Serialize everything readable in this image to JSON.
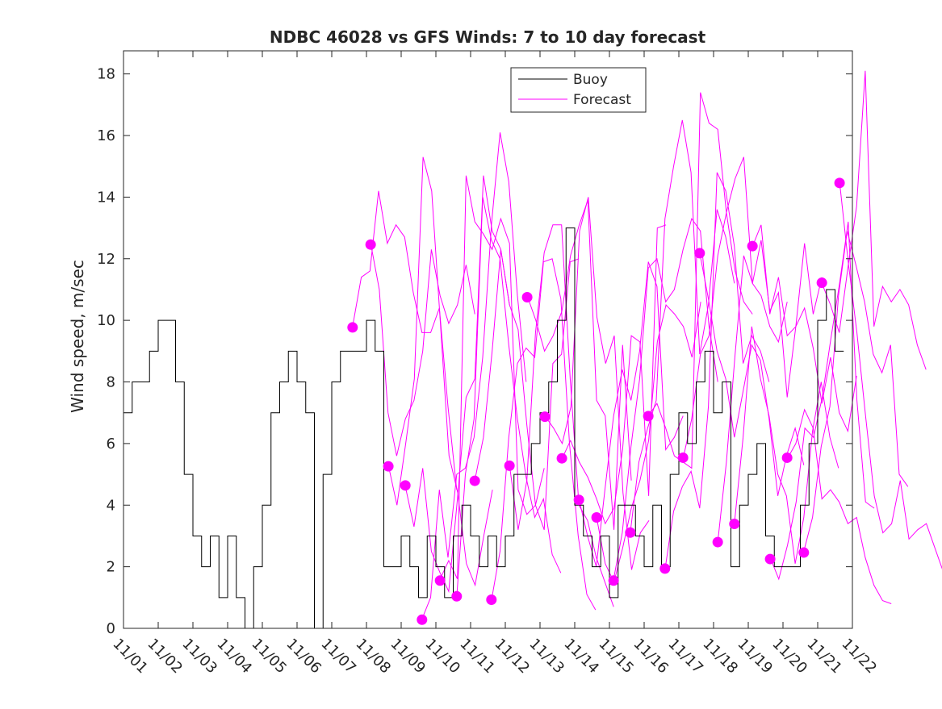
{
  "chart_data": {
    "type": "line",
    "title": "NDBC 46028 vs GFS Winds: 7 to 10 day forecast",
    "xlabel": "",
    "ylabel": "Wind speed, m/sec",
    "xlim": [
      0,
      21
    ],
    "ylim": [
      0,
      18.75
    ],
    "yticks": [
      0,
      2,
      4,
      6,
      8,
      10,
      12,
      14,
      16,
      18
    ],
    "xtick_labels": [
      "11/01",
      "11/02",
      "11/03",
      "11/04",
      "11/05",
      "11/06",
      "11/07",
      "11/08",
      "11/09",
      "11/10",
      "11/11",
      "11/12",
      "11/13",
      "11/14",
      "11/15",
      "11/16",
      "11/17",
      "11/18",
      "11/19",
      "11/20",
      "11/21",
      "11/22"
    ],
    "legend": {
      "placement": "top-center",
      "entries": [
        "Buoy",
        "Forecast"
      ]
    },
    "colors": {
      "buoy": "#000000",
      "forecast": "#ff00ff"
    },
    "buoy": {
      "step_days": 0.25,
      "start_day": 0,
      "values": [
        7,
        8,
        8,
        9,
        10,
        10,
        8,
        5,
        3,
        2,
        3,
        1,
        3,
        1,
        0,
        2,
        4,
        7,
        8,
        9,
        8,
        7,
        0,
        5,
        8,
        9,
        9,
        9,
        10,
        9,
        2,
        2,
        3,
        2,
        1,
        3,
        2,
        1,
        3,
        4,
        3,
        2,
        3,
        2,
        3,
        5,
        5,
        6,
        7,
        8,
        10,
        13,
        4,
        3,
        2,
        3,
        1,
        4,
        4,
        3,
        2,
        4,
        2,
        5,
        7,
        6,
        8,
        9,
        7,
        8,
        2,
        4,
        5,
        6,
        3,
        2,
        2,
        2,
        4,
        6,
        10,
        11,
        9
      ]
    },
    "forecast_points": [
      [
        6.6,
        9.77
      ],
      [
        7.12,
        12.46
      ],
      [
        7.63,
        5.26
      ],
      [
        8.12,
        4.64
      ],
      [
        8.6,
        0.28
      ],
      [
        9.12,
        1.55
      ],
      [
        9.6,
        1.04
      ],
      [
        10.12,
        4.79
      ],
      [
        10.6,
        0.93
      ],
      [
        11.12,
        5.28
      ],
      [
        11.63,
        10.75
      ],
      [
        12.14,
        6.87
      ],
      [
        12.63,
        5.52
      ],
      [
        13.12,
        4.17
      ],
      [
        13.63,
        3.6
      ],
      [
        14.12,
        1.55
      ],
      [
        14.6,
        3.11
      ],
      [
        15.12,
        6.89
      ],
      [
        15.6,
        1.94
      ],
      [
        16.12,
        5.54
      ],
      [
        16.6,
        12.18
      ],
      [
        17.12,
        2.8
      ],
      [
        17.6,
        3.39
      ],
      [
        18.12,
        12.41
      ],
      [
        18.63,
        2.25
      ],
      [
        19.12,
        5.54
      ],
      [
        19.6,
        2.46
      ],
      [
        20.12,
        11.22
      ],
      [
        20.63,
        14.46
      ]
    ],
    "forecast_series": [
      [
        9.8,
        11.4,
        11.6,
        14.2,
        12.5,
        13.1,
        12.7,
        10.9,
        9.6,
        9.6,
        10.4,
        7.2,
        4.5
      ],
      [
        12.5,
        11.0,
        7.0,
        5.6,
        6.8,
        7.4,
        9.0,
        12.3,
        10.8,
        9.9,
        10.5,
        11.8,
        10.2
      ],
      [
        5.3,
        4.0,
        6.0,
        8.1,
        15.3,
        14.2,
        9.9,
        5.6,
        4.4,
        2.1,
        1.4,
        3.0,
        4.5
      ],
      [
        4.6,
        3.3,
        5.2,
        2.5,
        1.8,
        1.2,
        4.2,
        7.5,
        8.1,
        14.7,
        12.9,
        12.3,
        10.5
      ],
      [
        0.3,
        1.0,
        4.5,
        2.3,
        5.0,
        5.2,
        6.2,
        8.8,
        13.1,
        16.1,
        14.5,
        10.8,
        8.0
      ],
      [
        1.6,
        2.2,
        1.6,
        14.7,
        13.2,
        12.8,
        12.3,
        13.3,
        12.5,
        4.5,
        3.7,
        4.0,
        5.2
      ],
      [
        1.0,
        5.0,
        6.8,
        14.0,
        12.6,
        12.0,
        9.2,
        6.8,
        4.9,
        3.6,
        4.2,
        2.4,
        1.8
      ],
      [
        4.8,
        6.2,
        9.0,
        12.3,
        10.5,
        9.7,
        6.6,
        4.0,
        3.2,
        8.6,
        8.9,
        11.9,
        12.0
      ],
      [
        0.9,
        2.5,
        6.2,
        8.6,
        9.1,
        8.8,
        11.9,
        12.0,
        10.7,
        6.0,
        3.0,
        1.1,
        0.6
      ],
      [
        5.3,
        3.2,
        4.8,
        9.6,
        12.2,
        13.1,
        13.1,
        8.1,
        4.0,
        3.5,
        2.3,
        1.5,
        0.7
      ],
      [
        10.8,
        10.0,
        9.0,
        9.5,
        10.3,
        12.1,
        13.1,
        13.9,
        7.4,
        6.9,
        3.2,
        9.2,
        4.8
      ],
      [
        6.9,
        6.5,
        6.0,
        7.2,
        12.9,
        14.0,
        10.1,
        8.6,
        9.5,
        4.4,
        1.9,
        3.1,
        3.5
      ],
      [
        5.5,
        6.1,
        5.4,
        4.9,
        4.2,
        3.4,
        3.9,
        5.8,
        9.5,
        9.3,
        4.3,
        13.0,
        13.1
      ],
      [
        4.2,
        3.0,
        2.0,
        4.5,
        6.9,
        8.4,
        7.4,
        9.0,
        11.9,
        11.1,
        5.8,
        6.2,
        6.9
      ],
      [
        3.6,
        2.1,
        1.5,
        2.6,
        3.9,
        4.8,
        6.1,
        9.3,
        10.5,
        10.2,
        9.8,
        8.8,
        10.6
      ],
      [
        1.6,
        3.1,
        5.9,
        8.1,
        11.7,
        12.0,
        10.6,
        11.0,
        12.3,
        13.3,
        12.9,
        9.8,
        8.0
      ],
      [
        3.1,
        5.4,
        6.5,
        7.4,
        13.3,
        15.0,
        16.5,
        14.8,
        8.9,
        10.5,
        13.6,
        12.7,
        11.2
      ],
      [
        6.9,
        7.3,
        6.5,
        5.6,
        5.4,
        5.2,
        17.4,
        16.4,
        16.2,
        13.5,
        11.6,
        10.6,
        10.2
      ],
      [
        1.9,
        3.8,
        4.6,
        5.1,
        3.9,
        7.2,
        14.8,
        14.2,
        12.4,
        8.6,
        9.5,
        9.0,
        8.0
      ],
      [
        5.5,
        6.8,
        8.9,
        9.5,
        12.1,
        13.5,
        14.6,
        15.3,
        11.2,
        10.8,
        9.8,
        9.3,
        10.6
      ],
      [
        12.2,
        10.7,
        9.0,
        8.1,
        6.2,
        7.7,
        9.2,
        8.7,
        6.8,
        4.3,
        5.6,
        6.5,
        5.3
      ],
      [
        2.8,
        5.4,
        8.9,
        12.1,
        11.2,
        12.6,
        10.3,
        10.9,
        7.5,
        9.8,
        12.5,
        10.2,
        11.4
      ],
      [
        3.4,
        6.2,
        9.8,
        8.1,
        6.9,
        5.0,
        4.3,
        2.1,
        3.6,
        6.4,
        8.0,
        6.2,
        5.2
      ],
      [
        12.4,
        13.1,
        10.2,
        11.4,
        9.5,
        9.8,
        10.4,
        9.1,
        7.3,
        8.8,
        7.0,
        6.4,
        8.2
      ],
      [
        2.3,
        1.6,
        2.7,
        4.1,
        6.5,
        6.2,
        7.5,
        9.4,
        11.2,
        13.2,
        7.4,
        4.1,
        3.9
      ],
      [
        5.5,
        6.0,
        7.1,
        6.5,
        4.2,
        4.5,
        4.1,
        3.4,
        3.6,
        2.3,
        1.4,
        0.9,
        0.8
      ],
      [
        2.5,
        3.6,
        5.9,
        7.2,
        10.8,
        12.9,
        11.8,
        10.6,
        8.9,
        8.3,
        9.2,
        5.0,
        4.6
      ],
      [
        11.2,
        10.5,
        9.6,
        11.7,
        13.7,
        18.1,
        9.8,
        11.1,
        10.6,
        11.0,
        10.5,
        9.2,
        8.4
      ],
      [
        14.5,
        11.9,
        9.6,
        6.9,
        4.3,
        3.1,
        3.4,
        4.8,
        2.9,
        3.2,
        3.4,
        2.6,
        1.8
      ]
    ]
  }
}
